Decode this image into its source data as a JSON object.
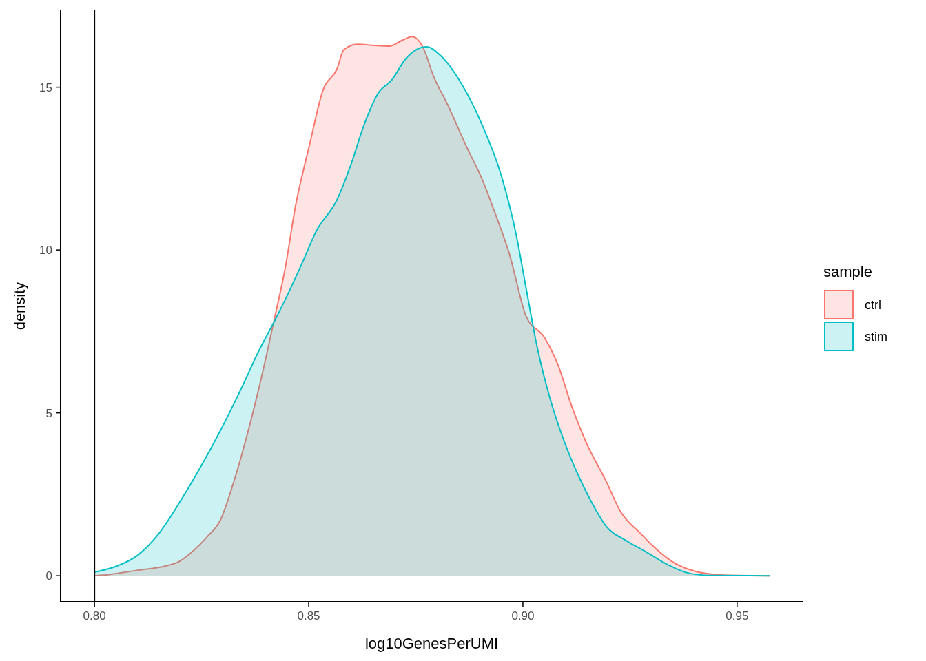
{
  "chart_data": {
    "type": "area",
    "xlabel": "log10GenesPerUMI",
    "ylabel": "density",
    "legend_title": "sample",
    "legend": "right",
    "grid": false,
    "xlim": [
      0.7921,
      0.9653
    ],
    "ylim": [
      -0.8,
      17.36
    ],
    "xticks": [
      {
        "value": 0.8,
        "label": "0.80"
      },
      {
        "value": 0.85,
        "label": "0.85"
      },
      {
        "value": 0.9,
        "label": "0.90"
      },
      {
        "value": 0.95,
        "label": "0.95"
      }
    ],
    "yticks": [
      0,
      5,
      10,
      15
    ],
    "ref_lines": [
      {
        "axis": "x",
        "value": 0.8,
        "color": "#000000"
      }
    ],
    "series": [
      {
        "name": "ctrl",
        "color": "#f8766d",
        "x": [
          0.8,
          0.8037,
          0.8101,
          0.8166,
          0.8198,
          0.823,
          0.8262,
          0.8294,
          0.8325,
          0.8357,
          0.8389,
          0.8421,
          0.8445,
          0.8469,
          0.8502,
          0.8534,
          0.8566,
          0.8582,
          0.8614,
          0.8654,
          0.8688,
          0.872,
          0.8741,
          0.8768,
          0.8791,
          0.8823,
          0.8871,
          0.8904,
          0.8936,
          0.8968,
          0.9008,
          0.905,
          0.9082,
          0.9114,
          0.9146,
          0.9195,
          0.9227,
          0.9275,
          0.9307,
          0.9355,
          0.9404,
          0.9468,
          0.9576
        ],
        "values": [
          0,
          0.04,
          0.17,
          0.3,
          0.44,
          0.76,
          1.18,
          1.71,
          2.88,
          4.36,
          6.05,
          7.95,
          9.43,
          11.33,
          13.23,
          14.93,
          15.56,
          16.15,
          16.32,
          16.28,
          16.26,
          16.45,
          16.55,
          16.19,
          15.35,
          14.5,
          13.1,
          12.2,
          11.1,
          9.9,
          7.95,
          7.32,
          6.47,
          5.2,
          4.14,
          2.88,
          1.99,
          1.29,
          0.87,
          0.38,
          0.13,
          0.02,
          0
        ]
      },
      {
        "name": "stim",
        "color": "#00bfc4",
        "x": [
          0.8,
          0.8053,
          0.8101,
          0.815,
          0.8198,
          0.8246,
          0.8294,
          0.8342,
          0.8383,
          0.8421,
          0.8453,
          0.8486,
          0.8518,
          0.8566,
          0.8598,
          0.863,
          0.8662,
          0.8695,
          0.8727,
          0.8775,
          0.8807,
          0.8855,
          0.8904,
          0.8952,
          0.8984,
          0.9008,
          0.9032,
          0.9064,
          0.9096,
          0.9129,
          0.9161,
          0.9193,
          0.9241,
          0.9289,
          0.9338,
          0.9387,
          0.9436,
          0.9576
        ],
        "values": [
          0.11,
          0.3,
          0.63,
          1.29,
          2.24,
          3.3,
          4.46,
          5.73,
          6.89,
          7.84,
          8.69,
          9.64,
          10.59,
          11.54,
          12.6,
          13.87,
          14.81,
          15.24,
          15.88,
          16.24,
          15.98,
          15.14,
          13.87,
          12.18,
          10.49,
          8.79,
          7.1,
          5.41,
          4.14,
          3.09,
          2.24,
          1.54,
          1.08,
          0.72,
          0.34,
          0.08,
          0.01,
          0
        ]
      }
    ]
  }
}
